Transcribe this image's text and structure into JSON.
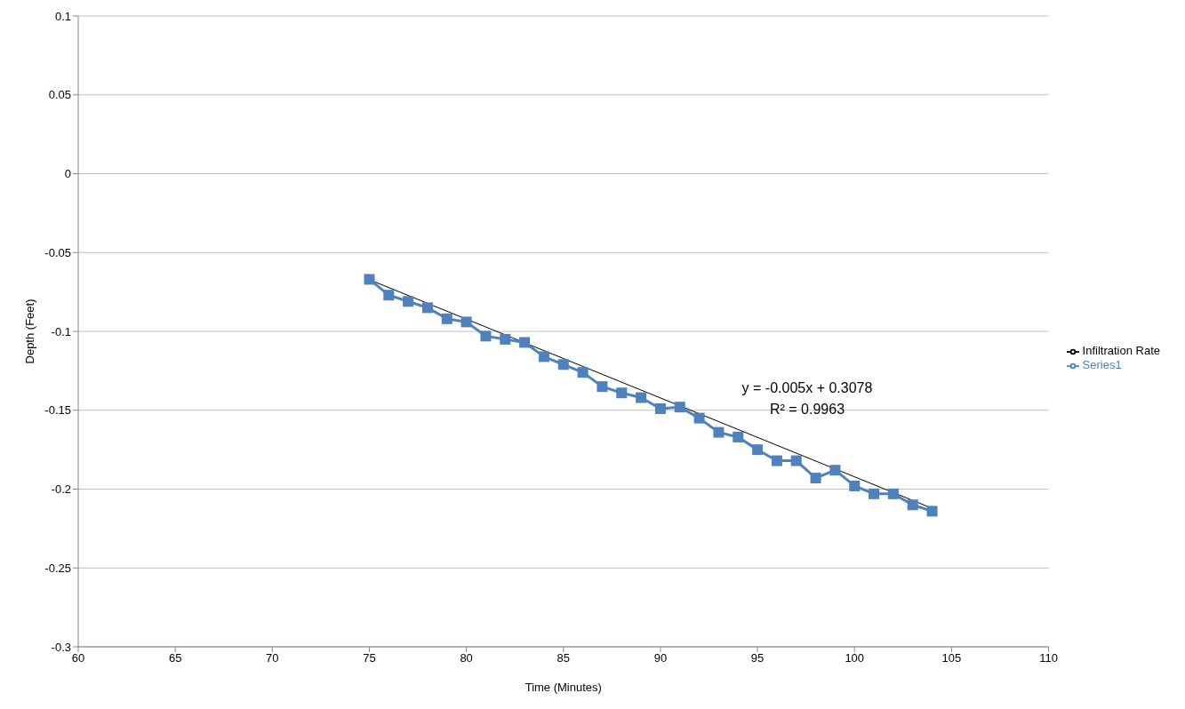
{
  "chart_data": {
    "type": "line",
    "xlabel": "Time (Minutes)",
    "ylabel": "Depth (Feet)",
    "xlim": [
      60,
      110
    ],
    "xticks": [
      60,
      65,
      70,
      75,
      80,
      85,
      90,
      95,
      100,
      105,
      110
    ],
    "ylim": [
      -0.3,
      0.1
    ],
    "yticks": [
      -0.3,
      -0.25,
      -0.2,
      -0.15,
      -0.1,
      -0.05,
      0,
      0.05,
      0.1
    ],
    "grid": "y",
    "legend": "right",
    "series": [
      {
        "name": "Series1",
        "color": "#4f81bd",
        "marker": "square",
        "line_style": "solid",
        "x": [
          75,
          76,
          77,
          78,
          79,
          80,
          81,
          82,
          83,
          84,
          85,
          86,
          87,
          88,
          89,
          90,
          91,
          92,
          93,
          94,
          95,
          96,
          97,
          98,
          99,
          100,
          101,
          102,
          103,
          104
        ],
        "values": [
          -0.067,
          -0.077,
          -0.081,
          -0.085,
          -0.092,
          -0.094,
          -0.103,
          -0.105,
          -0.107,
          -0.116,
          -0.121,
          -0.126,
          -0.135,
          -0.139,
          -0.142,
          -0.149,
          -0.148,
          -0.155,
          -0.164,
          -0.167,
          -0.175,
          -0.182,
          -0.182,
          -0.193,
          -0.188,
          -0.198,
          -0.203,
          -0.203,
          -0.21,
          -0.214
        ]
      },
      {
        "name": "Infiltration Rate",
        "color": "#000000",
        "marker": "none",
        "line_style": "solid",
        "x": [
          75,
          104
        ],
        "values": [
          -0.0672,
          -0.2122
        ]
      }
    ],
    "annotations": [
      "y = -0.005x + 0.3078",
      "R² = 0.9963"
    ]
  }
}
